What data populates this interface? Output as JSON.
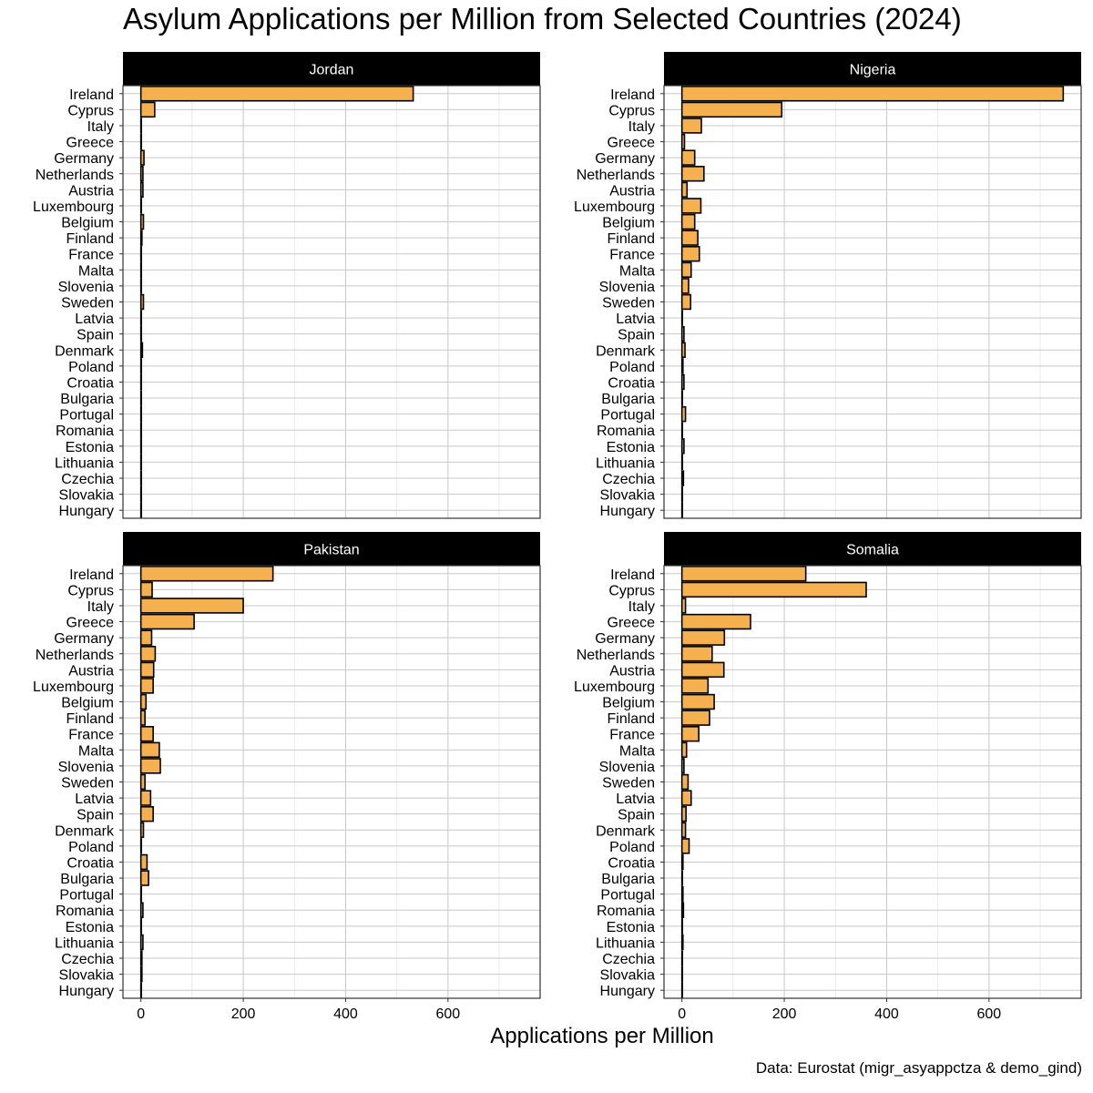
{
  "title": "Asylum Applications per Million from Selected Countries (2024)",
  "caption": "Data: Eurostat (migr_asyappctza & demo_gind)",
  "chart_data": {
    "type": "bar",
    "orientation": "horizontal",
    "facet_layout": "2x2",
    "title": "Asylum Applications per Million from Selected Countries (2024)",
    "xlabel": "Applications per Million",
    "ylabel": "",
    "xlim": [
      -35,
      780
    ],
    "xticks": [
      0,
      200,
      400,
      600
    ],
    "grid": true,
    "legend": "none",
    "bar_color": "#F5B04F",
    "bar_edge_color": "#000000",
    "strip_color": "#000000",
    "strip_text_color": "#FFFFFF",
    "categories": [
      "Ireland",
      "Cyprus",
      "Italy",
      "Greece",
      "Germany",
      "Netherlands",
      "Austria",
      "Luxembourg",
      "Belgium",
      "Finland",
      "France",
      "Malta",
      "Slovenia",
      "Sweden",
      "Latvia",
      "Spain",
      "Denmark",
      "Poland",
      "Croatia",
      "Bulgaria",
      "Portugal",
      "Romania",
      "Estonia",
      "Lithuania",
      "Czechia",
      "Slovakia",
      "Hungary"
    ],
    "facets": [
      {
        "name": "Jordan",
        "values": [
          532,
          27,
          1,
          1,
          6,
          4,
          4,
          1,
          5,
          2,
          1,
          1,
          1,
          5,
          1,
          1,
          3,
          1,
          1,
          1,
          1,
          1,
          1,
          1,
          1,
          1,
          1
        ]
      },
      {
        "name": "Nigeria",
        "values": [
          745,
          195,
          38,
          5,
          25,
          43,
          10,
          37,
          25,
          31,
          34,
          18,
          13,
          17,
          1,
          4,
          6,
          2,
          4,
          1,
          7,
          1,
          4,
          1,
          3,
          1,
          1
        ]
      },
      {
        "name": "Pakistan",
        "values": [
          258,
          22,
          200,
          104,
          21,
          28,
          25,
          24,
          10,
          8,
          24,
          36,
          38,
          8,
          19,
          24,
          5,
          1,
          12,
          15,
          1,
          4,
          1,
          4,
          2,
          2,
          1
        ]
      },
      {
        "name": "Somalia",
        "values": [
          242,
          360,
          7,
          134,
          83,
          59,
          82,
          51,
          63,
          54,
          33,
          9,
          4,
          12,
          18,
          8,
          7,
          14,
          2,
          1,
          2,
          3,
          1,
          2,
          1,
          1,
          1
        ]
      }
    ]
  }
}
